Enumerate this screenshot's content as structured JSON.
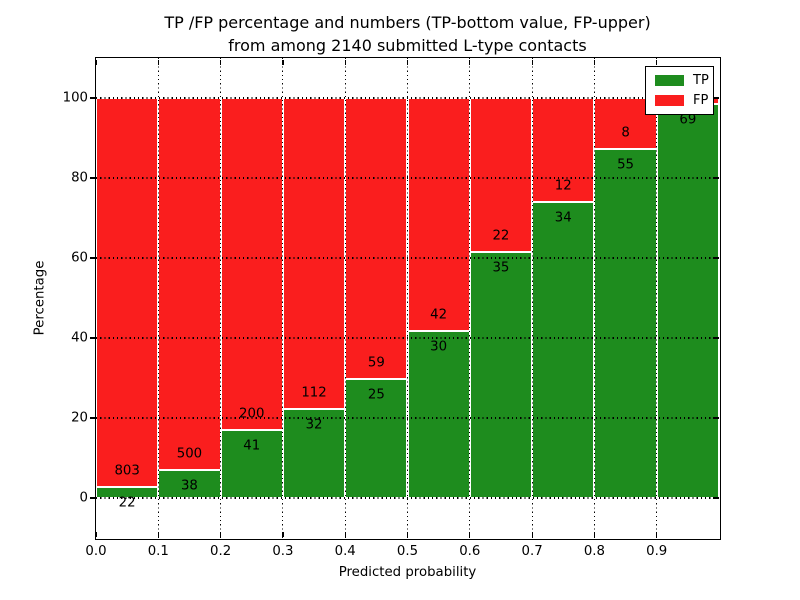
{
  "title": {
    "line1": "TP /FP percentage and numbers (TP-bottom value, FP-upper)",
    "line2": "from among 2140 submitted L-type contacts"
  },
  "axes": {
    "xlabel": "Predicted probability",
    "ylabel": "Percentage"
  },
  "legend": {
    "entries": [
      {
        "label": "TP",
        "color": "#1e8c1e"
      },
      {
        "label": "FP",
        "color": "#fa1e1e"
      }
    ]
  },
  "chart_data": {
    "type": "bar",
    "subtype": "stacked-percentage-histogram",
    "title": "TP /FP percentage and numbers (TP-bottom value, FP-upper)\nfrom among 2140 submitted L-type contacts",
    "xlabel": "Predicted probability",
    "ylabel": "Percentage",
    "total_contacts": 2140,
    "categories": [
      "0.0-0.1",
      "0.1-0.2",
      "0.2-0.3",
      "0.3-0.4",
      "0.4-0.5",
      "0.5-0.6",
      "0.6-0.7",
      "0.7-0.8",
      "0.8-0.9",
      "0.9-1.0"
    ],
    "bins": [
      {
        "range": [
          0.0,
          0.1
        ],
        "tp": 22,
        "fp": 803,
        "tp_percent": 2.7
      },
      {
        "range": [
          0.1,
          0.2
        ],
        "tp": 38,
        "fp": 500,
        "tp_percent": 7.1
      },
      {
        "range": [
          0.2,
          0.3
        ],
        "tp": 41,
        "fp": 200,
        "tp_percent": 17.0
      },
      {
        "range": [
          0.3,
          0.4
        ],
        "tp": 32,
        "fp": 112,
        "tp_percent": 22.2
      },
      {
        "range": [
          0.4,
          0.5
        ],
        "tp": 25,
        "fp": 59,
        "tp_percent": 29.8
      },
      {
        "range": [
          0.5,
          0.6
        ],
        "tp": 30,
        "fp": 42,
        "tp_percent": 41.7
      },
      {
        "range": [
          0.6,
          0.7
        ],
        "tp": 35,
        "fp": 22,
        "tp_percent": 61.4
      },
      {
        "range": [
          0.7,
          0.8
        ],
        "tp": 34,
        "fp": 12,
        "tp_percent": 73.9
      },
      {
        "range": [
          0.8,
          0.9
        ],
        "tp": 55,
        "fp": 8,
        "tp_percent": 87.3
      },
      {
        "range": [
          0.9,
          1.0
        ],
        "tp": 69,
        "fp": 1,
        "tp_percent": 98.6
      }
    ],
    "series": [
      {
        "name": "TP",
        "color": "#1e8c1e",
        "values": [
          22,
          38,
          41,
          32,
          25,
          30,
          35,
          34,
          55,
          69
        ]
      },
      {
        "name": "FP",
        "color": "#fa1e1e",
        "values": [
          803,
          500,
          200,
          112,
          59,
          42,
          22,
          12,
          8,
          1
        ]
      }
    ],
    "colors": {
      "tp": "#1e8c1e",
      "fp": "#fa1e1e",
      "grid": "#000000",
      "bar_edge": "#ffffff"
    },
    "xlim": [
      0.0,
      1.0
    ],
    "ylim": [
      -10,
      110
    ],
    "xticks": [
      "0.0",
      "0.1",
      "0.2",
      "0.3",
      "0.4",
      "0.5",
      "0.6",
      "0.7",
      "0.8",
      "0.9"
    ],
    "yticks": [
      "0",
      "20",
      "40",
      "60",
      "80",
      "100"
    ],
    "grid": {
      "style": "dotted",
      "both_axes": true,
      "drawn_above_bars": true
    },
    "legend_position": "upper right",
    "note": "last bin FP count label is covered by the legend box"
  }
}
